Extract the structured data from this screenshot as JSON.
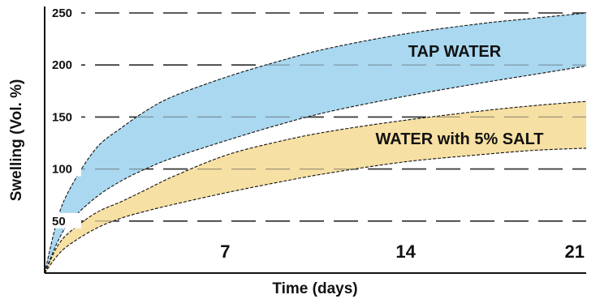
{
  "chart_data": {
    "type": "area",
    "xlabel": "Time (days)",
    "ylabel": "Swelling (Vol. %)",
    "x_ticks": [
      7,
      14,
      21
    ],
    "y_ticks": [
      50,
      100,
      150,
      200,
      250
    ],
    "xlim": [
      0,
      21
    ],
    "ylim": [
      0,
      250
    ],
    "grid": true,
    "series": [
      {
        "name": "TAP WATER",
        "color": "#a9d8f0",
        "x": [
          0,
          0.5,
          1,
          2,
          3,
          4,
          5,
          7,
          9,
          11,
          14,
          17,
          19,
          21
        ],
        "lower": [
          0,
          30,
          50,
          73,
          89,
          101,
          111,
          127,
          142,
          155,
          170,
          183,
          191,
          199
        ],
        "upper": [
          0,
          52,
          82,
          120,
          140,
          157,
          170,
          188,
          203,
          216,
          230,
          240,
          245,
          250
        ]
      },
      {
        "name": "WATER with 5% SALT",
        "color": "#f7e0a3",
        "x": [
          0,
          0.5,
          1,
          2,
          3,
          4,
          5,
          7,
          9,
          11,
          14,
          17,
          19,
          21
        ],
        "lower": [
          0,
          17,
          28,
          43,
          53,
          60,
          66,
          77,
          87,
          96,
          107,
          114,
          118,
          120
        ],
        "upper": [
          0,
          26,
          40,
          58,
          69,
          81,
          93,
          113,
          126,
          136,
          147,
          156,
          161,
          165
        ]
      }
    ]
  }
}
